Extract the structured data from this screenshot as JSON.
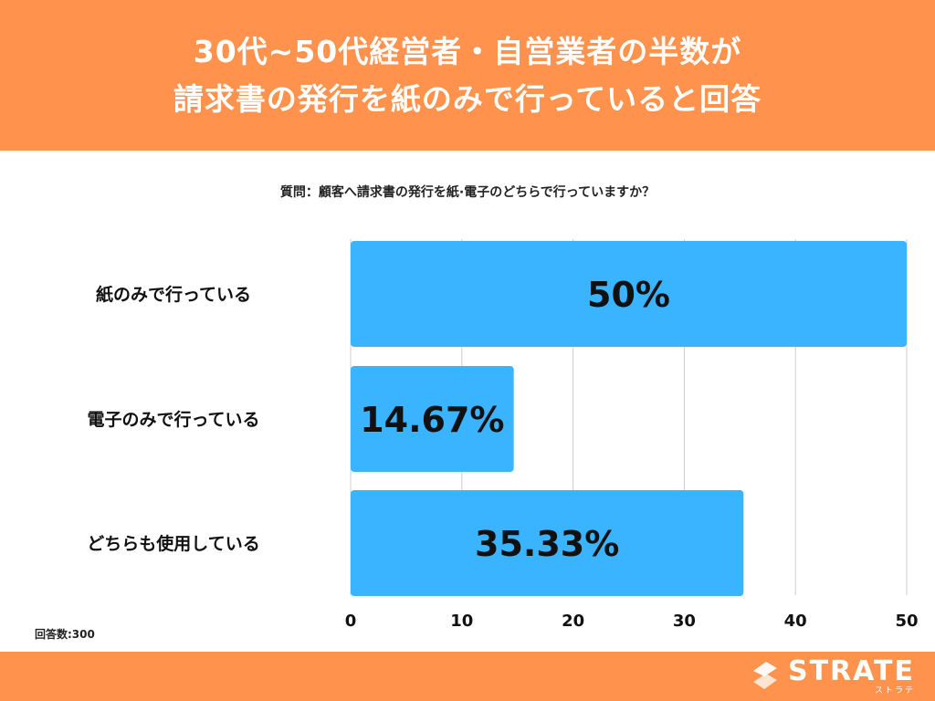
{
  "header": {
    "title_line1": "30代~50代経営者・自営業者の半数が",
    "title_line2": "請求書の発行を紙のみで行っていると回答"
  },
  "question": "質問：顧客へ請求書の発行を紙·電子のどちらで行っていますか？",
  "answer_count": "回答数:300",
  "footer": {
    "logo_text": "STRATE",
    "logo_sub": "ストラテ"
  },
  "colors": {
    "header_bg": "#ff924c",
    "bar": "#3ab4ff",
    "grid": "#cccccc"
  },
  "chart_data": {
    "type": "bar",
    "orientation": "horizontal",
    "categories": [
      "紙のみで行っている",
      "電子のみで行っている",
      "どちらも使用している"
    ],
    "values": [
      50,
      14.67,
      35.33
    ],
    "value_labels": [
      "50%",
      "14.67%",
      "35.33%"
    ],
    "xlim": [
      0,
      50
    ],
    "xticks": [
      0,
      10,
      20,
      30,
      40,
      50
    ],
    "grid": true
  }
}
